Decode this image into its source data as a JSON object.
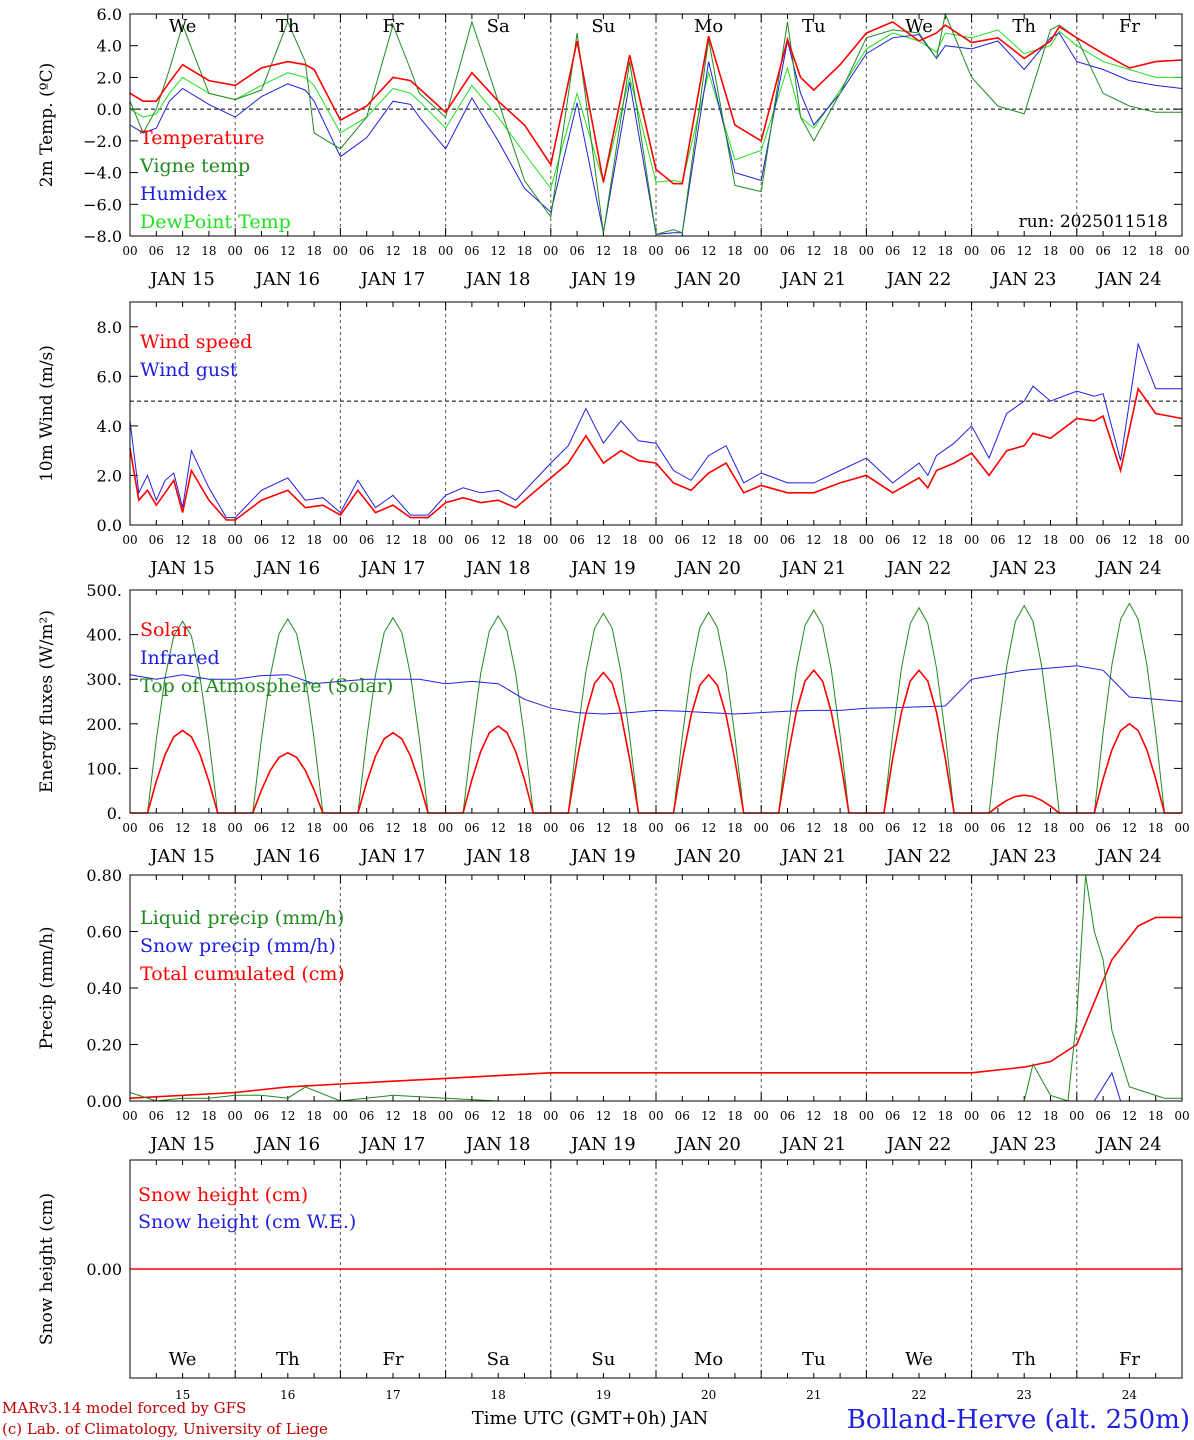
{
  "run_label": "run: 2025011518",
  "dates": [
    "JAN 15",
    "JAN 16",
    "JAN 17",
    "JAN 18",
    "JAN 19",
    "JAN 20",
    "JAN 21",
    "JAN 22",
    "JAN 23",
    "JAN 24"
  ],
  "weekdays": [
    "We",
    "Th",
    "Fr",
    "Sa",
    "Su",
    "Mo",
    "Tu",
    "We",
    "Th",
    "Fr"
  ],
  "weekday_colors": [
    "#000000",
    "#000000",
    "#000000",
    "#ff0000",
    "#ff0000",
    "#000000",
    "#000000",
    "#000000",
    "#000000",
    "#000000"
  ],
  "day_numbers": [
    "15",
    "16",
    "17",
    "18",
    "19",
    "20",
    "21",
    "22",
    "23",
    "24"
  ],
  "hour_ticks": [
    "00",
    "06",
    "12",
    "18"
  ],
  "final_tick": "00",
  "footer": {
    "credit_line1": "MARv3.14 model forced by GFS",
    "credit_line2": "(c) Lab. of Climatology, University of Liege",
    "axis_title": "Time UTC (GMT+0h) JAN",
    "station": "Bolland-Herve (alt. 250m)"
  },
  "chart_data": [
    {
      "type": "line",
      "ylabel": "2m Temp. (ºC)",
      "ylim": [
        -8,
        6
      ],
      "yticks": [
        "6.0",
        "4.0",
        "2.0",
        "0.0",
        "−2.0",
        "−4.0",
        "−6.0",
        "−8.0"
      ],
      "ref_line": 0,
      "x_unit": "hours since JAN 15 00 UTC",
      "series": [
        {
          "name": "Temperature",
          "color": "#ff0000",
          "x": [
            0,
            3,
            6,
            9,
            12,
            18,
            24,
            30,
            36,
            40,
            42,
            48,
            54,
            60,
            64,
            66,
            72,
            78,
            84,
            90,
            96,
            102,
            108,
            114,
            120,
            124,
            126,
            132,
            138,
            144,
            150,
            153,
            156,
            162,
            168,
            174,
            180,
            184,
            186,
            192,
            198,
            204,
            210,
            212,
            216,
            222,
            228,
            234,
            240
          ],
          "y": [
            1,
            0.5,
            0.5,
            1.7,
            2.8,
            1.8,
            1.5,
            2.6,
            3.0,
            2.8,
            2.5,
            -0.7,
            0.2,
            2.0,
            1.8,
            1.3,
            -0.2,
            2.3,
            0.5,
            -1.0,
            -3.5,
            4.3,
            -4.6,
            3.4,
            -3.8,
            -4.7,
            -4.7,
            4.6,
            -1.0,
            -2.0,
            4.4,
            2.0,
            1.2,
            2.8,
            4.8,
            5.5,
            4.3,
            4.8,
            5.3,
            4.2,
            4.5,
            3.2,
            4.3,
            5.2,
            4.5,
            3.5,
            2.6,
            3.0,
            3.1
          ]
        },
        {
          "name": "Vigne temp",
          "color": "#208a20",
          "x": [
            0,
            3,
            6,
            9,
            12,
            18,
            24,
            30,
            36,
            40,
            42,
            48,
            54,
            60,
            64,
            66,
            72,
            78,
            84,
            90,
            96,
            102,
            108,
            114,
            120,
            124,
            126,
            132,
            138,
            144,
            150,
            153,
            156,
            162,
            168,
            174,
            180,
            184,
            186,
            192,
            198,
            204,
            210,
            212,
            216,
            222,
            228,
            234,
            240
          ],
          "y": [
            0.5,
            -1.5,
            0,
            2.5,
            5.3,
            1.0,
            0.6,
            1.2,
            5.5,
            3,
            -1.5,
            -2.5,
            -0.5,
            5.3,
            2.5,
            1.0,
            -0.5,
            5.5,
            0.5,
            -4.5,
            -6.8,
            4.8,
            -7.8,
            3,
            -7.9,
            -7.6,
            -7.8,
            4.4,
            -4.8,
            -5.2,
            5.5,
            -0.5,
            -2.0,
            1.0,
            4.5,
            5.0,
            4.8,
            3.2,
            6.0,
            2.0,
            0.2,
            -0.3,
            5.0,
            5.3,
            4.5,
            1.0,
            0.2,
            -0.2,
            -0.2
          ]
        },
        {
          "name": "Humidex",
          "color": "#2020e0",
          "x": [
            0,
            3,
            6,
            9,
            12,
            18,
            24,
            30,
            36,
            40,
            42,
            48,
            54,
            60,
            64,
            66,
            72,
            78,
            84,
            90,
            96,
            102,
            108,
            114,
            120,
            124,
            126,
            132,
            138,
            144,
            150,
            153,
            156,
            162,
            168,
            174,
            180,
            184,
            186,
            192,
            198,
            204,
            210,
            212,
            216,
            222,
            228,
            234,
            240
          ],
          "y": [
            -1,
            -1.5,
            -1.2,
            0.5,
            1.3,
            0.3,
            -0.5,
            0.8,
            1.6,
            1.2,
            0.5,
            -3.0,
            -1.8,
            0.5,
            0.3,
            -0.5,
            -2.5,
            0.7,
            -2.0,
            -5.0,
            -6.5,
            0.4,
            -7.8,
            1.7,
            -7.9,
            -7.8,
            -7.8,
            3.0,
            -4.0,
            -4.5,
            4.3,
            1.0,
            -1.0,
            1.0,
            3.5,
            4.5,
            4.7,
            3.2,
            4.0,
            3.8,
            4.3,
            2.5,
            4.5,
            4.8,
            3.0,
            2.5,
            1.8,
            1.5,
            1.3
          ]
        },
        {
          "name": "DewPoint Temp",
          "color": "#20e020",
          "x": [
            0,
            3,
            6,
            9,
            12,
            18,
            24,
            30,
            36,
            40,
            42,
            48,
            54,
            60,
            64,
            66,
            72,
            78,
            84,
            90,
            96,
            102,
            108,
            114,
            120,
            124,
            126,
            132,
            138,
            144,
            150,
            153,
            156,
            162,
            168,
            174,
            180,
            184,
            186,
            192,
            198,
            204,
            210,
            212,
            216,
            222,
            228,
            234,
            240
          ],
          "y": [
            0,
            -0.5,
            -0.3,
            1.0,
            2.0,
            1.0,
            0.6,
            1.5,
            2.3,
            2.0,
            1.5,
            -1.5,
            -0.5,
            1.3,
            1.0,
            0.5,
            -1.2,
            1.5,
            -0.5,
            -2.8,
            -5.0,
            1.0,
            -4.6,
            2.0,
            -4.6,
            -4.5,
            -4.6,
            2.3,
            -3.2,
            -2.6,
            2.6,
            -0.5,
            -1.2,
            1.2,
            3.8,
            4.8,
            4.3,
            3.6,
            4.8,
            4.5,
            5.0,
            3.5,
            4.0,
            4.9,
            4.0,
            3.0,
            2.5,
            2.0,
            2.0
          ]
        }
      ]
    },
    {
      "type": "line",
      "ylabel": "10m Wind (m/s)",
      "ylim": [
        0,
        9
      ],
      "yticks": [
        "8.0",
        "6.0",
        "4.0",
        "2.0",
        "0.0"
      ],
      "ref_line": 5,
      "x_unit": "hours since JAN 15 00 UTC",
      "series": [
        {
          "name": "Wind speed",
          "color": "#ff0000",
          "x": [
            0,
            2,
            4,
            6,
            8,
            10,
            12,
            14,
            18,
            22,
            24,
            30,
            36,
            40,
            44,
            48,
            52,
            56,
            60,
            64,
            68,
            72,
            76,
            80,
            84,
            88,
            96,
            100,
            104,
            108,
            112,
            116,
            120,
            124,
            128,
            132,
            136,
            140,
            144,
            150,
            156,
            162,
            168,
            174,
            180,
            182,
            184,
            188,
            192,
            196,
            200,
            204,
            206,
            210,
            216,
            220,
            222,
            226,
            230,
            234,
            240
          ],
          "y": [
            3.1,
            1.0,
            1.4,
            0.8,
            1.3,
            1.8,
            0.5,
            2.2,
            1.0,
            0.2,
            0.2,
            1.0,
            1.4,
            0.7,
            0.8,
            0.4,
            1.4,
            0.5,
            0.8,
            0.3,
            0.3,
            0.9,
            1.1,
            0.9,
            1.0,
            0.7,
            1.9,
            2.5,
            3.6,
            2.5,
            3.0,
            2.6,
            2.5,
            1.7,
            1.4,
            2.1,
            2.5,
            1.3,
            1.6,
            1.3,
            1.3,
            1.7,
            2.0,
            1.3,
            1.9,
            1.5,
            2.2,
            2.5,
            2.9,
            2.0,
            3.0,
            3.2,
            3.7,
            3.5,
            4.3,
            4.2,
            4.4,
            2.2,
            5.5,
            4.5,
            4.3
          ]
        },
        {
          "name": "Wind gust",
          "color": "#2020e0",
          "x": [
            0,
            2,
            4,
            6,
            8,
            10,
            12,
            14,
            18,
            22,
            24,
            30,
            36,
            40,
            44,
            48,
            52,
            56,
            60,
            64,
            68,
            72,
            76,
            80,
            84,
            88,
            96,
            100,
            104,
            108,
            112,
            116,
            120,
            124,
            128,
            132,
            136,
            140,
            144,
            150,
            156,
            162,
            168,
            174,
            180,
            182,
            184,
            188,
            192,
            196,
            200,
            204,
            206,
            210,
            216,
            220,
            222,
            226,
            230,
            234,
            240
          ],
          "y": [
            4.2,
            1.3,
            2.0,
            1.0,
            1.8,
            2.1,
            0.7,
            3.0,
            1.5,
            0.3,
            0.3,
            1.4,
            1.9,
            1.0,
            1.1,
            0.5,
            1.8,
            0.7,
            1.2,
            0.4,
            0.4,
            1.2,
            1.5,
            1.3,
            1.4,
            1.0,
            2.5,
            3.2,
            4.7,
            3.3,
            4.2,
            3.4,
            3.3,
            2.2,
            1.8,
            2.8,
            3.2,
            1.7,
            2.1,
            1.7,
            1.7,
            2.2,
            2.7,
            1.7,
            2.5,
            2.0,
            2.8,
            3.3,
            4.0,
            2.7,
            4.5,
            5.0,
            5.6,
            5.0,
            5.4,
            5.2,
            5.3,
            2.6,
            7.3,
            5.5,
            5.5
          ]
        }
      ]
    },
    {
      "type": "line",
      "ylabel": "Energy fluxes (W/m²)",
      "ylim": [
        0,
        500
      ],
      "yticks": [
        "500.",
        "400.",
        "300.",
        "200.",
        "100.",
        "0."
      ],
      "ref_line": null,
      "x_unit": "hours since JAN 15 00 UTC",
      "series": [
        {
          "name": "Solar",
          "color": "#ff0000",
          "peaks": [
            185,
            135,
            180,
            195,
            315,
            310,
            320,
            320,
            40,
            200
          ],
          "peak_hour": 12,
          "half_width_hours": 8
        },
        {
          "name": "Infrared",
          "color": "#2020e0",
          "x": [
            0,
            6,
            12,
            18,
            24,
            30,
            36,
            42,
            48,
            54,
            60,
            66,
            72,
            78,
            84,
            90,
            96,
            102,
            108,
            114,
            120,
            126,
            132,
            138,
            144,
            150,
            156,
            162,
            168,
            174,
            180,
            186,
            192,
            198,
            204,
            210,
            216,
            222,
            228,
            234,
            240
          ],
          "y": [
            310,
            300,
            310,
            300,
            300,
            308,
            310,
            290,
            295,
            300,
            300,
            300,
            290,
            295,
            290,
            255,
            235,
            225,
            222,
            225,
            230,
            228,
            225,
            222,
            225,
            228,
            230,
            230,
            235,
            236,
            238,
            240,
            300,
            310,
            320,
            325,
            330,
            320,
            260,
            255,
            250
          ]
        },
        {
          "name": "Top of Atmosphere (Solar)",
          "color": "#208a20",
          "peaks": [
            430,
            435,
            438,
            442,
            448,
            450,
            455,
            460,
            465,
            470
          ],
          "peak_hour": 12,
          "half_width_hours": 8
        }
      ]
    },
    {
      "type": "line",
      "ylabel": "Precip (mm/h)",
      "ylim": [
        0,
        0.8
      ],
      "yticks": [
        "0.80",
        "0.60",
        "0.40",
        "0.20",
        "0.00"
      ],
      "ref_line": null,
      "x_unit": "hours since JAN 15 00 UTC",
      "series": [
        {
          "name": "Liquid precip (mm/h)",
          "color": "#208a20",
          "x": [
            0,
            6,
            12,
            18,
            24,
            30,
            36,
            40,
            48,
            60,
            72,
            84,
            96,
            120,
            144,
            168,
            180,
            204,
            206,
            210,
            214,
            216,
            218,
            220,
            222,
            224,
            226,
            228,
            232,
            236,
            240
          ],
          "y": [
            0.03,
            0.0,
            0.01,
            0.01,
            0.02,
            0.02,
            0.01,
            0.05,
            0.0,
            0.02,
            0.01,
            0.0,
            0.0,
            0.0,
            0.0,
            0.0,
            0.0,
            0.0,
            0.13,
            0.02,
            0.0,
            0.3,
            0.8,
            0.6,
            0.5,
            0.25,
            0.15,
            0.05,
            0.03,
            0.01,
            0.01
          ]
        },
        {
          "name": "Snow precip (mm/h)",
          "color": "#2020e0",
          "x": [
            0,
            206,
            220,
            224,
            226,
            230,
            240
          ],
          "y": [
            0,
            0,
            0,
            0.1,
            0,
            0,
            0
          ]
        },
        {
          "name": "Total cumulated (cm)",
          "color": "#ff0000",
          "x": [
            0,
            24,
            36,
            48,
            60,
            72,
            84,
            96,
            120,
            144,
            168,
            192,
            204,
            210,
            216,
            220,
            224,
            230,
            234,
            240
          ],
          "y": [
            0.01,
            0.03,
            0.05,
            0.06,
            0.07,
            0.08,
            0.09,
            0.1,
            0.1,
            0.1,
            0.1,
            0.1,
            0.12,
            0.14,
            0.2,
            0.35,
            0.5,
            0.62,
            0.65,
            0.65
          ]
        }
      ]
    },
    {
      "type": "line",
      "ylabel": "Snow height (cm)",
      "ylim": [
        -1,
        1
      ],
      "yticks": [
        "0.00"
      ],
      "ref_line": null,
      "x_unit": "hours since JAN 15 00 UTC",
      "series": [
        {
          "name": "Snow height (cm)",
          "color": "#ff0000",
          "x": [
            0,
            240
          ],
          "y": [
            0,
            0
          ]
        },
        {
          "name": "Snow height (cm W.E.)",
          "color": "#2020e0",
          "x": [
            0,
            240
          ],
          "y": [
            0,
            0
          ]
        }
      ]
    }
  ]
}
